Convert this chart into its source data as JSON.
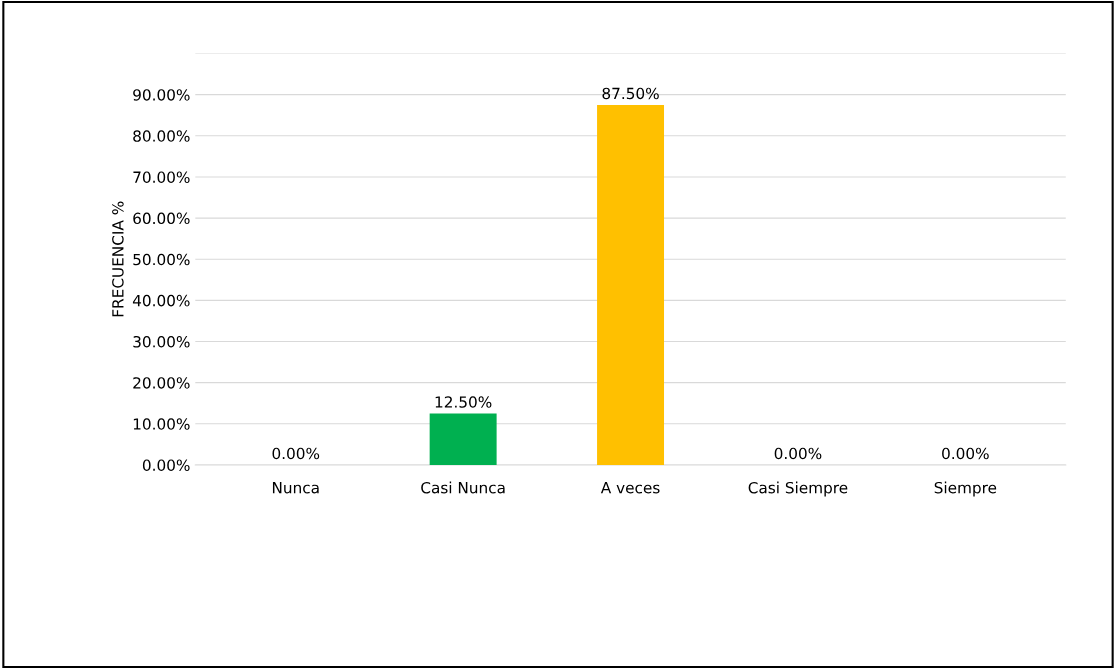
{
  "chart_data": {
    "type": "bar",
    "ylabel": "FRECUENCIA %",
    "categories": [
      "Nunca",
      "Casi Nunca",
      "A veces",
      "Casi Siempre",
      "Siempre"
    ],
    "values": [
      0,
      12.5,
      87.5,
      0,
      0
    ],
    "value_labels": [
      "0.00%",
      "12.50%",
      "87.50%",
      "0.00%",
      "0.00%"
    ],
    "colors": [
      "#3b0000",
      "#00b050",
      "#ffc000",
      "#002838",
      "#201030"
    ],
    "ylim": [
      0,
      100
    ],
    "yticks": [
      {
        "value": 0,
        "label": "0.00%"
      },
      {
        "value": 10,
        "label": "10.00%"
      },
      {
        "value": 20,
        "label": "20.00%"
      },
      {
        "value": 30,
        "label": "30.00%"
      },
      {
        "value": 40,
        "label": "40.00%"
      },
      {
        "value": 50,
        "label": "50.00%"
      },
      {
        "value": 60,
        "label": "60.00%"
      },
      {
        "value": 70,
        "label": "70.00%"
      },
      {
        "value": 80,
        "label": "80.00%"
      },
      {
        "value": 90,
        "label": "90.00%"
      },
      {
        "value": 100,
        "label": null
      }
    ],
    "grid": "y"
  }
}
